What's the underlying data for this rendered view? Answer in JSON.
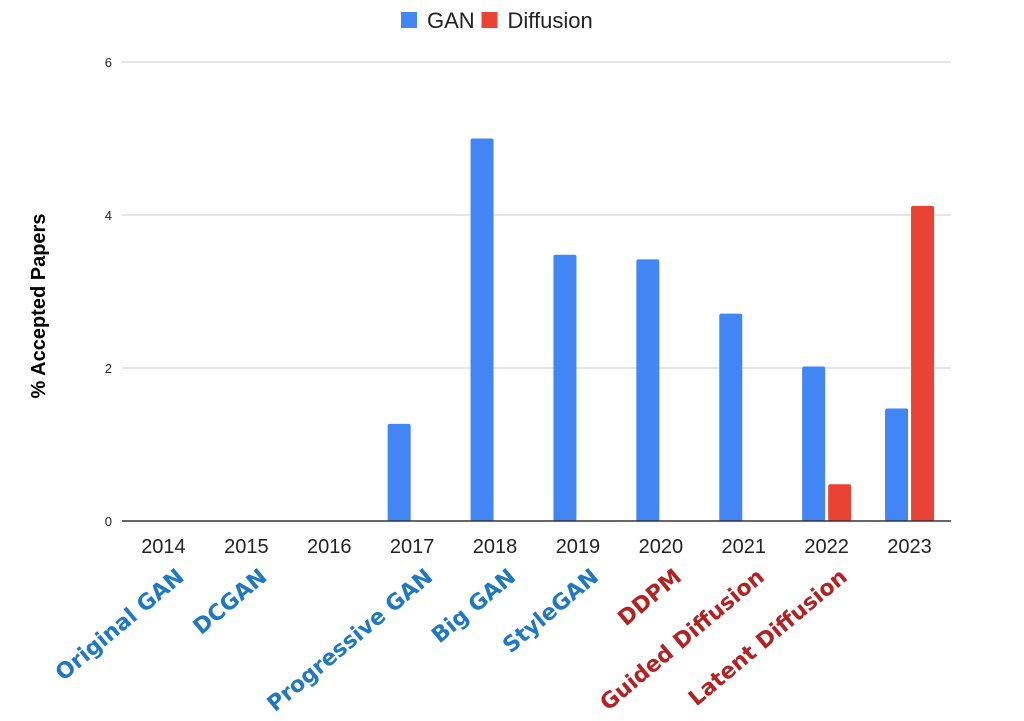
{
  "chart_data": {
    "type": "bar",
    "title": "",
    "xlabel": "",
    "ylabel": "% Accepted Papers",
    "ylim": [
      0,
      6
    ],
    "yticks": [
      "0",
      "2",
      "4",
      "6"
    ],
    "grid": true,
    "legend_position": "top",
    "categories": [
      "2014",
      "2015",
      "2016",
      "2017",
      "2018",
      "2019",
      "2020",
      "2021",
      "2022",
      "2023"
    ],
    "series": [
      {
        "name": "GAN",
        "color": "#4285f4",
        "values": [
          0,
          0,
          0,
          1.27,
          5.0,
          3.48,
          3.42,
          2.71,
          2.02,
          1.47
        ]
      },
      {
        "name": "Diffusion",
        "color": "#ea4335",
        "values": [
          0,
          0,
          0,
          0,
          0,
          0,
          0,
          0,
          0.48,
          4.12
        ]
      }
    ],
    "annotations": [
      {
        "text": "Original GAN",
        "category": "2014",
        "color": "#1f78c1"
      },
      {
        "text": "DCGAN",
        "category": "2015",
        "color": "#1f78c1"
      },
      {
        "text": "Progressive GAN",
        "category": "2017",
        "color": "#1f78c1"
      },
      {
        "text": "Big GAN",
        "category": "2018",
        "color": "#1f78c1"
      },
      {
        "text": "StyleGAN",
        "category": "2019",
        "color": "#1f78c1"
      },
      {
        "text": "DDPM",
        "category": "2020",
        "color": "#b22222"
      },
      {
        "text": "Guided Diffusion",
        "category": "2021",
        "color": "#b22222"
      },
      {
        "text": "Latent Diffusion",
        "category": "2022",
        "color": "#b22222"
      }
    ]
  }
}
